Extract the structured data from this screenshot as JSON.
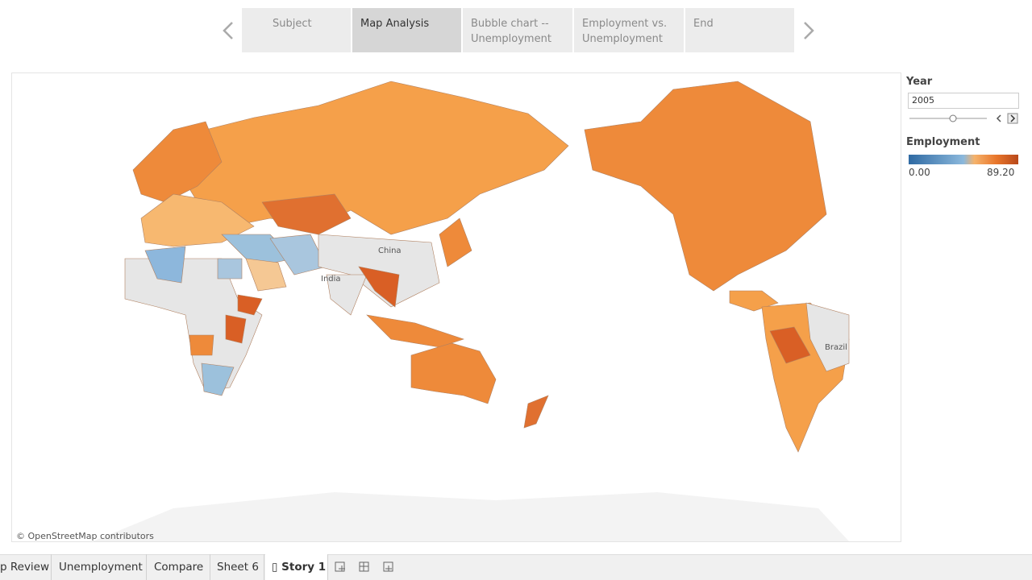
{
  "story_nav": {
    "tabs": [
      "Subject",
      "Map Analysis",
      "Bubble chart -- Unemployment",
      "Employment vs. Unemployment",
      "End"
    ],
    "active": "Map Analysis"
  },
  "map": {
    "labels": [
      "China",
      "India",
      "Brazil"
    ],
    "attribution": "© OpenStreetMap contributors"
  },
  "filter": {
    "title": "Year",
    "value": "2005"
  },
  "legend": {
    "title": "Employment",
    "min": "0.00",
    "max": "89.20"
  },
  "bottom_tabs": [
    "p Review",
    "Unemployment",
    "Compare",
    "Sheet 6",
    "Story 1"
  ]
}
